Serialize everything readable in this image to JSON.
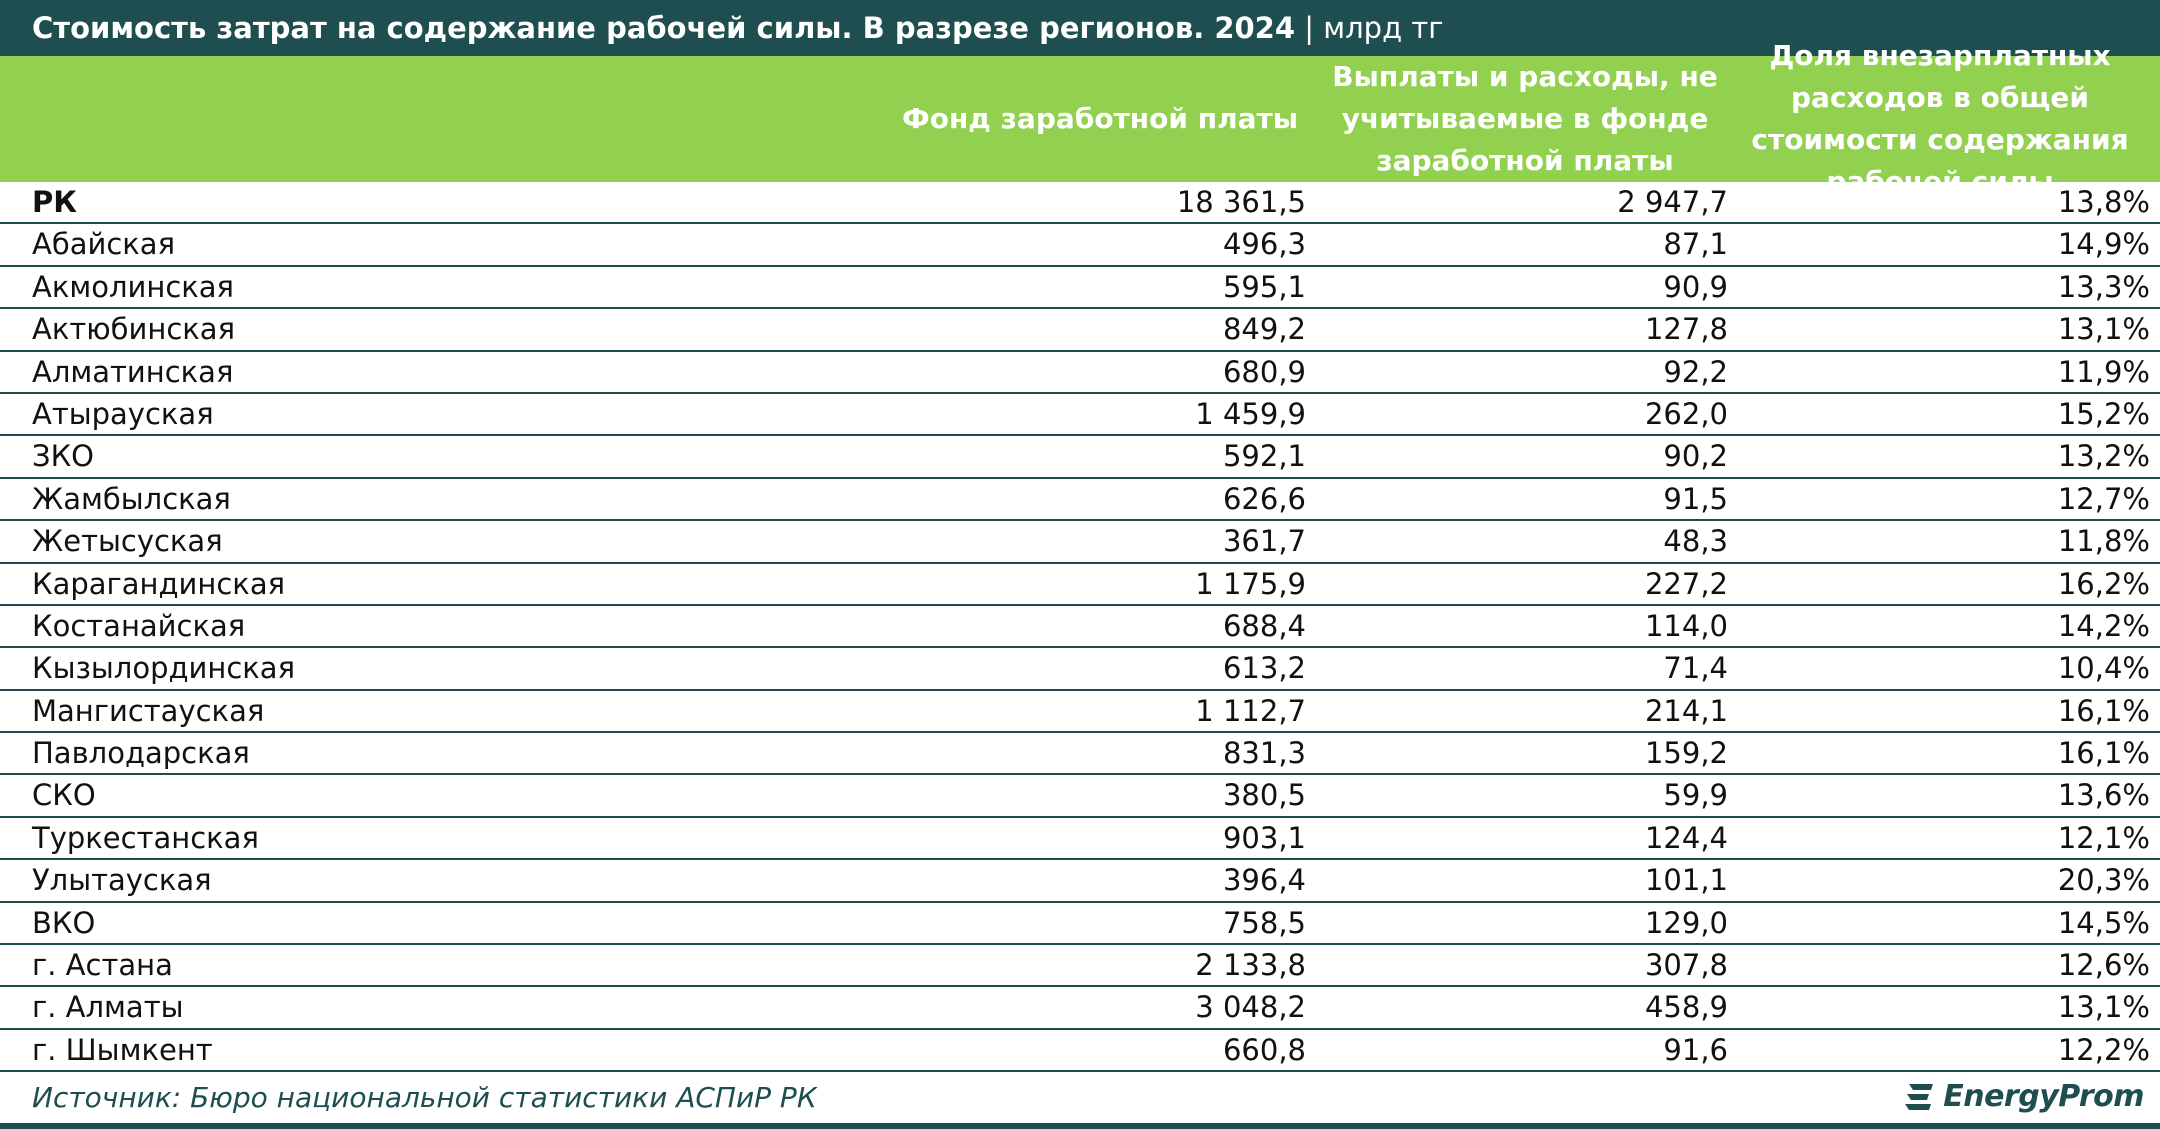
{
  "title": {
    "main": "Стоимость затрат на содержание рабочей силы. В разрезе регионов. 2024",
    "separator": " | ",
    "unit": "млрд тг"
  },
  "columns": [
    "Фонд заработной платы",
    "Выплаты и расходы, не учитываемые в фонде заработной платы",
    "Доля внезарплатных расходов в общей стоимости содержания рабочей силы"
  ],
  "rows": [
    {
      "region": "РК",
      "wage_fund": "18 361,5",
      "other_costs": "2 947,7",
      "share": "13,8%"
    },
    {
      "region": "Абайская",
      "wage_fund": "496,3",
      "other_costs": "87,1",
      "share": "14,9%"
    },
    {
      "region": "Акмолинская",
      "wage_fund": "595,1",
      "other_costs": "90,9",
      "share": "13,3%"
    },
    {
      "region": "Актюбинская",
      "wage_fund": "849,2",
      "other_costs": "127,8",
      "share": "13,1%"
    },
    {
      "region": "Алматинская",
      "wage_fund": "680,9",
      "other_costs": "92,2",
      "share": "11,9%"
    },
    {
      "region": "Атырауская",
      "wage_fund": "1 459,9",
      "other_costs": "262,0",
      "share": "15,2%"
    },
    {
      "region": "ЗКО",
      "wage_fund": "592,1",
      "other_costs": "90,2",
      "share": "13,2%"
    },
    {
      "region": "Жамбылская",
      "wage_fund": "626,6",
      "other_costs": "91,5",
      "share": "12,7%"
    },
    {
      "region": "Жетысуская",
      "wage_fund": "361,7",
      "other_costs": "48,3",
      "share": "11,8%"
    },
    {
      "region": "Карагандинская",
      "wage_fund": "1 175,9",
      "other_costs": "227,2",
      "share": "16,2%"
    },
    {
      "region": "Костанайская",
      "wage_fund": "688,4",
      "other_costs": "114,0",
      "share": "14,2%"
    },
    {
      "region": "Кызылординская",
      "wage_fund": "613,2",
      "other_costs": "71,4",
      "share": "10,4%"
    },
    {
      "region": "Мангистауская",
      "wage_fund": "1 112,7",
      "other_costs": "214,1",
      "share": "16,1%"
    },
    {
      "region": "Павлодарская",
      "wage_fund": "831,3",
      "other_costs": "159,2",
      "share": "16,1%"
    },
    {
      "region": "СКО",
      "wage_fund": "380,5",
      "other_costs": "59,9",
      "share": "13,6%"
    },
    {
      "region": "Туркестанская",
      "wage_fund": "903,1",
      "other_costs": "124,4",
      "share": "12,1%"
    },
    {
      "region": "Улытауская",
      "wage_fund": "396,4",
      "other_costs": "101,1",
      "share": "20,3%"
    },
    {
      "region": "ВКО",
      "wage_fund": "758,5",
      "other_costs": "129,0",
      "share": "14,5%"
    },
    {
      "region": "г. Астана",
      "wage_fund": "2 133,8",
      "other_costs": "307,8",
      "share": "12,6%"
    },
    {
      "region": "г. Алматы",
      "wage_fund": "3 048,2",
      "other_costs": "458,9",
      "share": "13,1%"
    },
    {
      "region": "г. Шымкент",
      "wage_fund": "660,8",
      "other_costs": "91,6",
      "share": "12,2%"
    }
  ],
  "footer": {
    "source": "Источник: Бюро национальной статистики АСПиР РК",
    "logo_text": "EnergyProm"
  },
  "colors": {
    "title_bg": "#1f4e50",
    "header_bg": "#92d050",
    "divider": "#1f4e50"
  },
  "icons": {
    "logo": "energyprom-logo-icon"
  }
}
